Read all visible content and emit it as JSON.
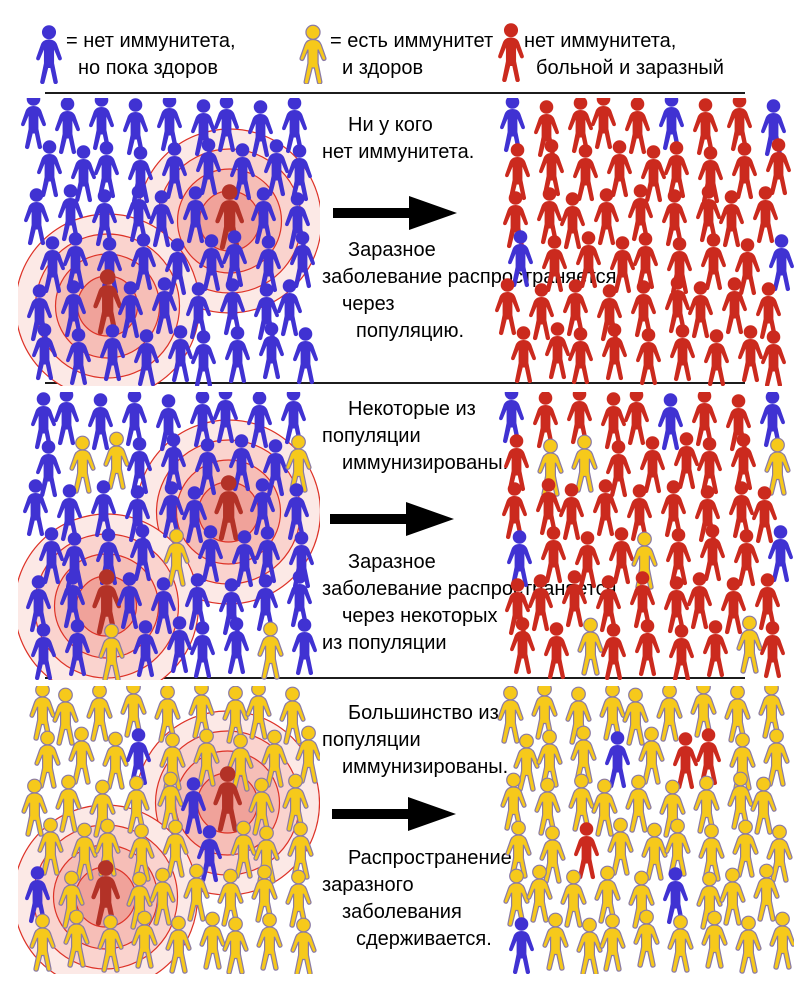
{
  "colors": {
    "blue": "#4032d2",
    "yellow": "#f6c91b",
    "yellow_outline": "#8a7aa6",
    "red": "#cb2a1e",
    "dark_red": "#b33227",
    "ring_stroke": "#dd3227",
    "ring_fills": [
      "#fce9e6",
      "#fad3ce",
      "#f6beb7",
      "#f0a29a"
    ],
    "arrow": "#000000",
    "text": "#000000"
  },
  "grid_key": {
    "B": "blue",
    "Y": "yellow",
    "R": "red",
    "D": "dark_red"
  },
  "legend": {
    "items": [
      {
        "figure": "blue",
        "lines": [
          "= нет иммунитета,",
          "но пока здоров"
        ]
      },
      {
        "figure": "yellow",
        "lines": [
          "= есть иммунитет",
          "и здоров"
        ]
      },
      {
        "figure": "red",
        "lines": [
          "нет иммунитета,",
          "больной и заразный"
        ]
      }
    ]
  },
  "rows": [
    {
      "top_lines": [
        "Ни у кого",
        "нет иммунитета."
      ],
      "bottom_lines": [
        "Заразное",
        "заболевание распространяется",
        "через",
        "популяцию."
      ],
      "left_grid": [
        "BBBBBBBBB",
        "BBBBBBBBB",
        "BBBBBBDBB",
        "BBBBBBBBB",
        "BBDBBBBBB",
        "BBBBBBBBB"
      ],
      "right_grid": [
        "BRRRRBRRB",
        "RRRRRRRRR",
        "RRRRRRRRR",
        "BRRRRRRRB",
        "RRRRRRRRR",
        "RRRRRRRRR"
      ]
    },
    {
      "top_lines": [
        "Некоторые из",
        "популяции",
        "иммунизированы."
      ],
      "bottom_lines": [
        "Заразное",
        "заболевание распространяется",
        "через некоторых",
        "из популяции"
      ],
      "left_grid": [
        "BBBBBBBBB",
        "BYYBBBBBY",
        "BBBBBBDBB",
        "BBBBYBBBB",
        "BBDBBBBBB",
        "BBYBBBBYB"
      ],
      "right_grid": [
        "BRRRRBRRB",
        "RYYRRRRRY",
        "RRRRRRRRR",
        "BRRRYRRRB",
        "RRRRRRRRR",
        "RRYRRRRYR"
      ]
    },
    {
      "top_lines": [
        "Большинство из",
        "популяции",
        "иммунизированы."
      ],
      "bottom_lines": [
        "Распространение",
        "заразного",
        "заболевания",
        "сдерживается."
      ],
      "left_grid": [
        "YYYYYYYYY",
        "YYYBYYYYY",
        "YYYYYBDYY",
        "YYYYYBYYY",
        "BYDYYYYYY",
        "YYYYYYYYY"
      ],
      "right_grid": [
        "YYYYYYYYY",
        "YYYBYRRYY",
        "YYYYYYYYY",
        "YYRYYYYYY",
        "YYYYYBYYY",
        "BYYYYYYYY"
      ]
    }
  ]
}
